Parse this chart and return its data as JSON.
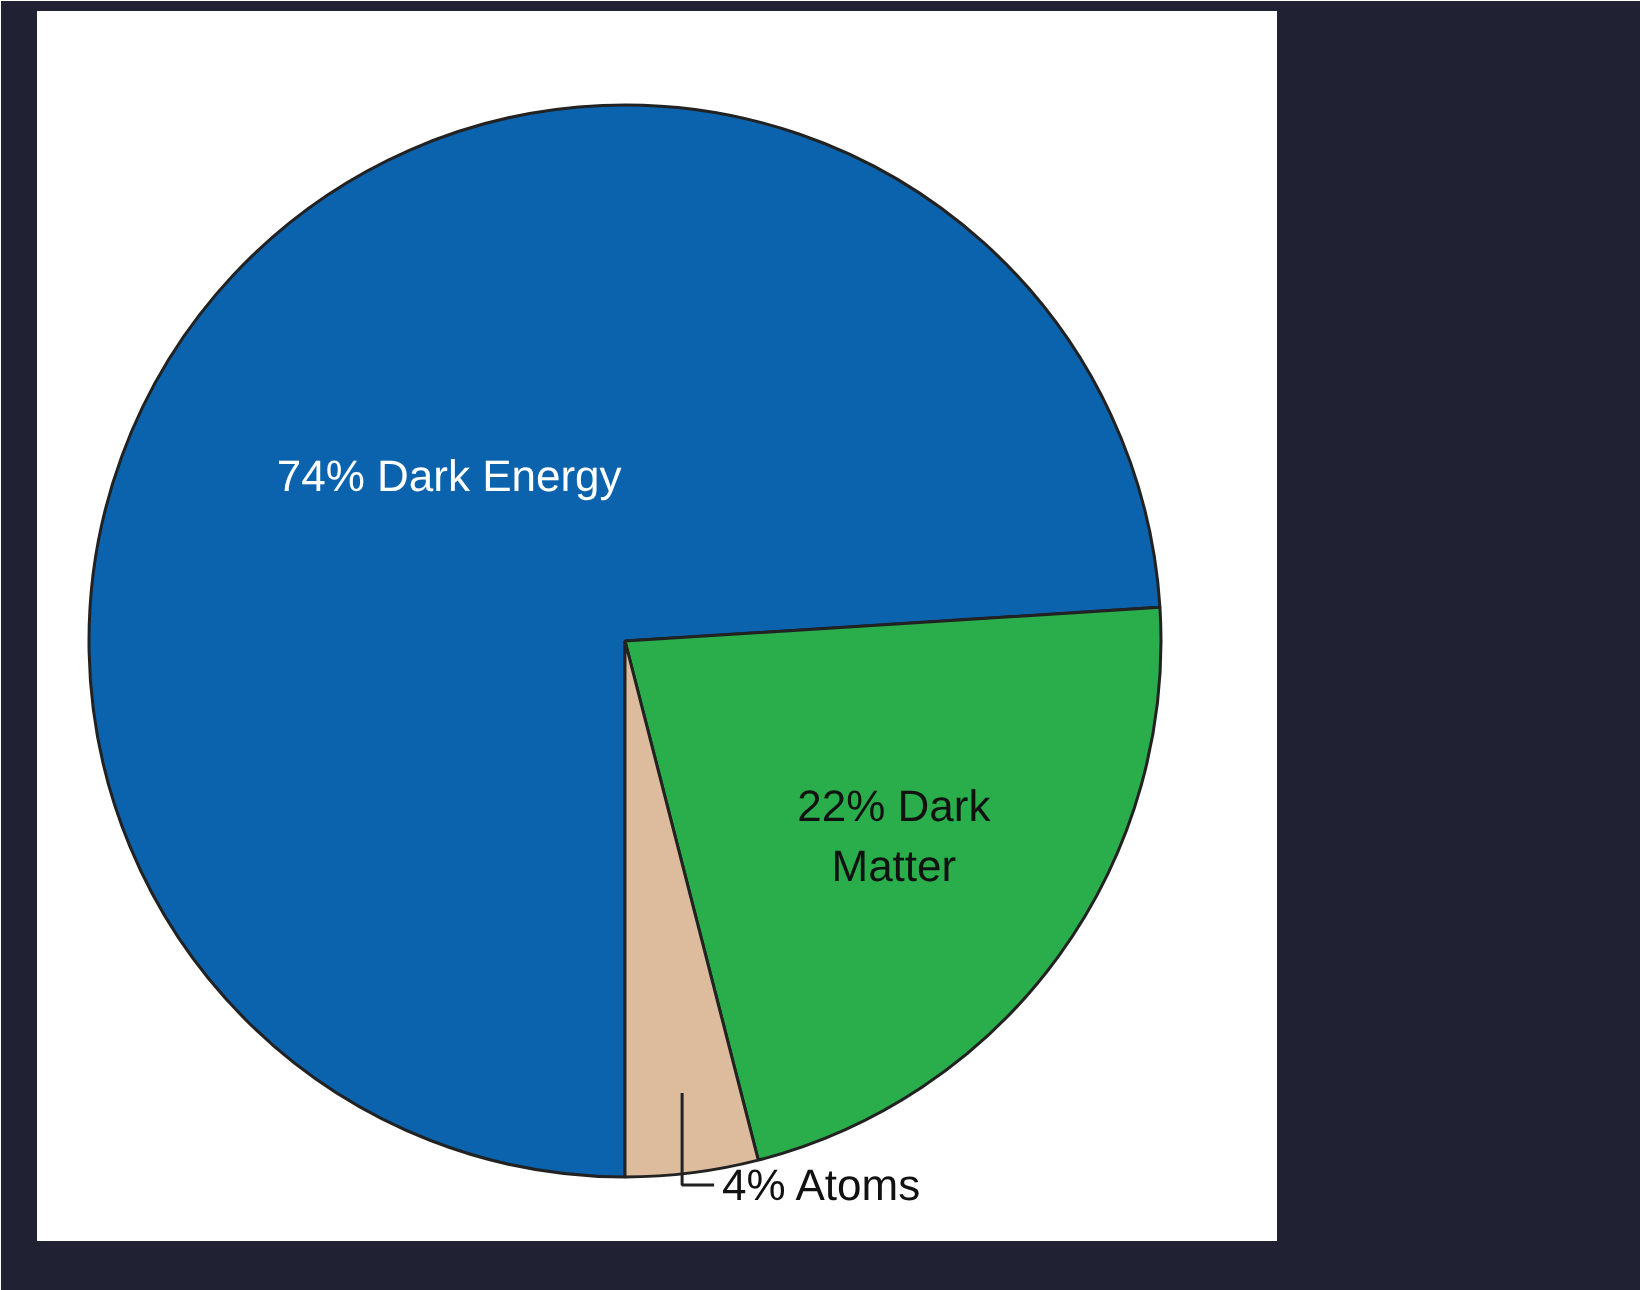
{
  "chart_data": {
    "type": "pie",
    "categories": [
      "Dark Energy",
      "Dark Matter",
      "Atoms"
    ],
    "values": [
      74,
      22,
      4
    ],
    "colors": [
      "#0b63ae",
      "#29ae4b",
      "#dcbc9c"
    ],
    "value_labels": [
      "74%",
      "22%",
      "4%"
    ]
  }
}
